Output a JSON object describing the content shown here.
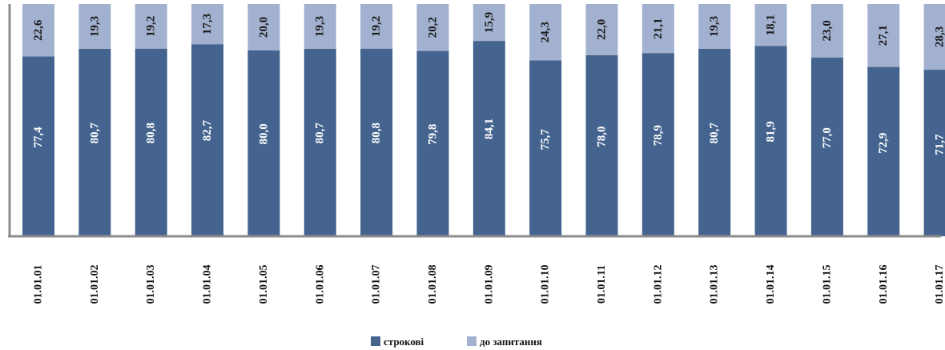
{
  "chart_data": {
    "type": "bar",
    "stacked": true,
    "percent_stacked": true,
    "categories": [
      "01.01.01",
      "01.01.02",
      "01.01.03",
      "01.01.04",
      "01.01.05",
      "01.01.06",
      "01.01.07",
      "01.01.08",
      "01.01.09",
      "01.01.10",
      "01.01.11",
      "01.01.12",
      "01.01.13",
      "01.01.14",
      "01.01.15",
      "01.01.16",
      "01.01.17"
    ],
    "series": [
      {
        "name": "строкові",
        "color": "#44648f",
        "values": [
          77.4,
          80.7,
          80.8,
          82.7,
          80.0,
          80.7,
          80.8,
          79.8,
          84.1,
          75.7,
          78.0,
          78.9,
          80.7,
          81.9,
          77.0,
          72.9,
          71.7
        ],
        "labels": [
          "77,4",
          "80,7",
          "80,8",
          "82,7",
          "80,0",
          "80,7",
          "80,8",
          "79,8",
          "84,1",
          "75,7",
          "78,0",
          "78,9",
          "80,7",
          "81,9",
          "77,0",
          "72,9",
          "71,7"
        ]
      },
      {
        "name": "до запитання",
        "color": "#a3b1d0",
        "values": [
          22.6,
          19.3,
          19.2,
          17.3,
          20.0,
          19.3,
          19.2,
          20.2,
          15.9,
          24.3,
          22.0,
          21.1,
          19.3,
          18.1,
          23.0,
          27.1,
          28.3
        ],
        "labels": [
          "22,6",
          "19,3",
          "19,2",
          "17,3",
          "20,0",
          "19,3",
          "19,2",
          "20,2",
          "15,9",
          "24,3",
          "22,0",
          "21,1",
          "19,3",
          "18,1",
          "23,0",
          "27,1",
          "28,3"
        ]
      }
    ],
    "ylim": [
      0,
      100
    ],
    "value_labels": "vertical",
    "tick_label_rotation": "vertical",
    "axis_color": "#8c8c8c",
    "legend_position": "bottom-center",
    "grid": false
  }
}
